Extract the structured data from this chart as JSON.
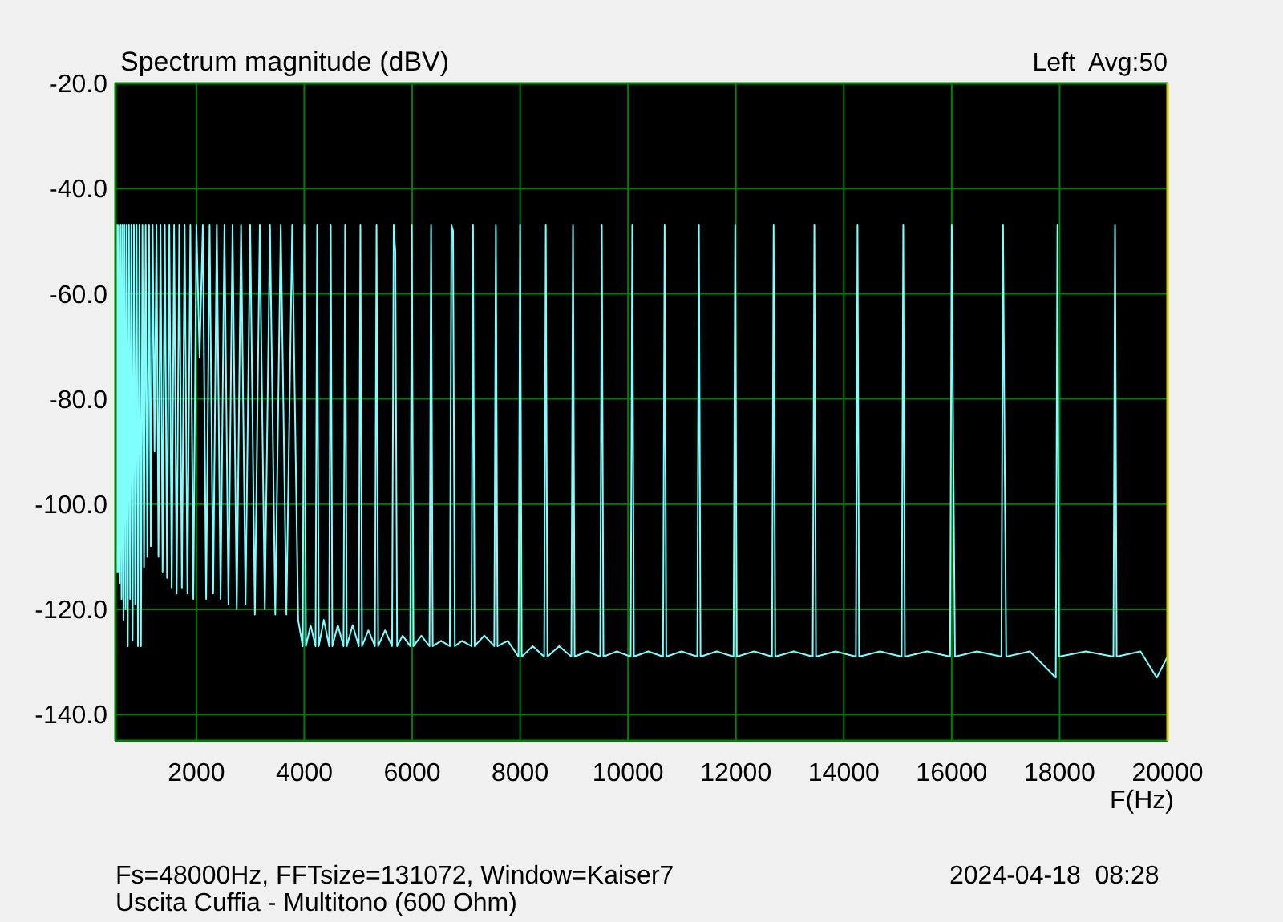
{
  "chart_data": {
    "type": "line",
    "title": "Spectrum magnitude (dBV)",
    "xlabel": "F(Hz)",
    "annotations": [
      "Left  Avg:50",
      "Fs=48000Hz, FFTsize=131072, Window=Kaiser7",
      "2024-04-18  08:28",
      "Uscita Cuffia - Multitono (600 Ohm)"
    ],
    "xlim": [
      500,
      20000
    ],
    "xticks": [
      2000,
      4000,
      6000,
      8000,
      10000,
      12000,
      14000,
      16000,
      18000,
      20000
    ],
    "ylim": [
      -145,
      -20
    ],
    "yticks": [
      {
        "value": -20,
        "label": "-20.0"
      },
      {
        "value": -40,
        "label": "-40.0"
      },
      {
        "value": -60,
        "label": "-60.0"
      },
      {
        "value": -80,
        "label": "-80.0"
      },
      {
        "value": -100,
        "label": "-100.0"
      },
      {
        "value": -120,
        "label": "-120.0"
      },
      {
        "value": -140,
        "label": "-140.0"
      }
    ],
    "grid": true,
    "color": "#80ffff",
    "x": [
      500,
      515,
      530,
      545,
      561,
      578,
      595,
      612,
      630,
      648,
      667,
      687,
      707,
      728,
      749,
      771,
      794,
      817,
      841,
      866,
      891,
      917,
      944,
      972,
      1000,
      1029,
      1059,
      1091,
      1122,
      1155,
      1189,
      1224,
      1260,
      1297,
      1335,
      1374,
      1414,
      1456,
      1498,
      1542,
      1587,
      1634,
      1682,
      1731,
      1782,
      1834,
      1888,
      1943,
      2000,
      2059,
      2119,
      2181,
      2245,
      2311,
      2378,
      2448,
      2520,
      2594,
      2670,
      2748,
      2828,
      2911,
      2997,
      3084,
      3175,
      3268,
      3364,
      3462,
      3564,
      3668,
      3776,
      3886,
      3970,
      4000,
      4030,
      4117,
      4208,
      4238,
      4268,
      4362,
      4460,
      4490,
      4520,
      4621,
      4727,
      4757,
      4787,
      4896,
      5010,
      5040,
      5070,
      5188,
      5309,
      5339,
      5369,
      5496,
      5627,
      5657,
      5687,
      5720,
      5823,
      5963,
      5993,
      6023,
      6169,
      6320,
      6350,
      6380,
      6536,
      6697,
      6727,
      6757,
      6790,
      6924,
      7097,
      7127,
      7157,
      7336,
      7521,
      7551,
      7581,
      7772,
      7970,
      8000,
      8030,
      8234,
      8446,
      8476,
      8506,
      8724,
      8950,
      8980,
      9010,
      9243,
      9484,
      9514,
      9544,
      9792,
      10049,
      10079,
      10109,
      10375,
      10649,
      10679,
      10709,
      10991,
      11284,
      11314,
      11344,
      11645,
      11956,
      11986,
      12016,
      12338,
      12669,
      12699,
      12729,
      13071,
      13424,
      13454,
      13484,
      13848,
      14224,
      14254,
      14284,
      14672,
      15072,
      15102,
      15132,
      15544,
      15970,
      16000,
      16030,
      16060,
      16469,
      16921,
      16951,
      16981,
      17010,
      17448,
      17929,
      17959,
      17989,
      18485,
      18997,
      19027,
      19057,
      19500,
      19800,
      20000
    ],
    "values": [
      -47,
      -113,
      -47,
      -113,
      -47,
      -115,
      -47,
      -118,
      -47,
      -122,
      -47,
      -120,
      -47,
      -127,
      -47,
      -118,
      -47,
      -126,
      -47,
      -119,
      -47,
      -127,
      -47,
      -127,
      -47,
      -112,
      -47,
      -110,
      -47,
      -108,
      -47,
      -90,
      -47,
      -110,
      -47,
      -113,
      -47,
      -114,
      -47,
      -116,
      -47,
      -117,
      -47,
      -116,
      -47,
      -117,
      -47,
      -118,
      -47,
      -72,
      -47,
      -118,
      -47,
      -117,
      -47,
      -118,
      -47,
      -119,
      -47,
      -120,
      -47,
      -119,
      -47,
      -121,
      -47,
      -120,
      -47,
      -121,
      -47,
      -121,
      -47,
      -122,
      -127,
      -47,
      -127,
      -123,
      -127,
      -47,
      -127,
      -122,
      -127,
      -47,
      -127,
      -123,
      -127,
      -47,
      -127,
      -123,
      -127,
      -47,
      -127,
      -124,
      -127,
      -47,
      -127,
      -124,
      -127,
      -47,
      -52,
      -127,
      -125,
      -127,
      -47,
      -127,
      -125,
      -127,
      -47,
      -127,
      -126,
      -127,
      -47,
      -48,
      -127,
      -126,
      -127,
      -47,
      -127,
      -125,
      -127,
      -47,
      -127,
      -126,
      -129,
      -47,
      -129,
      -127,
      -129,
      -47,
      -129,
      -127,
      -129,
      -47,
      -129,
      -128,
      -129,
      -47,
      -129,
      -128,
      -129,
      -47,
      -129,
      -128,
      -129,
      -47,
      -129,
      -128,
      -129,
      -47,
      -129,
      -128,
      -129,
      -47,
      -129,
      -128,
      -129,
      -47,
      -129,
      -128,
      -129,
      -47,
      -129,
      -128,
      -129,
      -47,
      -129,
      -128,
      -129,
      -47,
      -129,
      -128,
      -129,
      -47,
      -91,
      -129,
      -128,
      -129,
      -47,
      -91,
      -129,
      -128,
      -133,
      -47,
      -129,
      -128,
      -129,
      -47,
      -129,
      -128,
      -133,
      -129
    ]
  }
}
